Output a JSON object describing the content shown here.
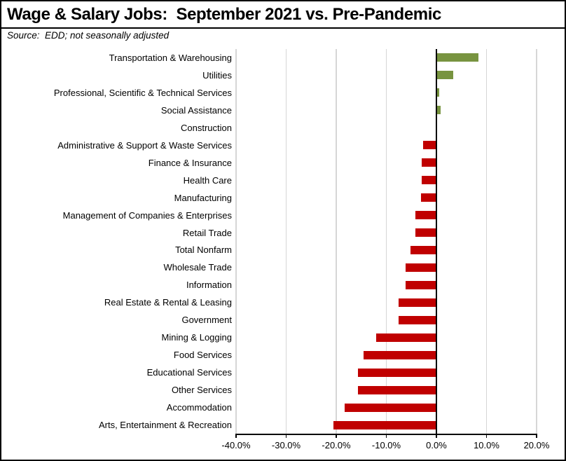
{
  "chart_data": {
    "type": "bar",
    "orientation": "horizontal",
    "title": "Wage & Salary Jobs:  September 2021 vs. Pre-Pandemic",
    "source": "Source:  EDD; not seasonally adjusted",
    "xlabel": "",
    "ylabel": "",
    "value_unit": "percent",
    "xlim": [
      -40,
      20
    ],
    "grid": true,
    "categories": [
      "Transportation & Warehousing",
      "Utilities",
      "Professional, Scientific & Technical Services",
      "Social Assistance",
      "Construction",
      "Administrative & Support & Waste Services",
      "Finance & Insurance",
      "Health Care",
      "Manufacturing",
      "Management of Companies & Enterprises",
      "Retail Trade",
      "Total Nonfarm",
      "Wholesale Trade",
      "Information",
      "Real Estate & Rental & Leasing",
      "Government",
      "Mining & Logging",
      "Food Services",
      "Educational Services",
      "Other Services",
      "Accommodation",
      "Arts, Entertainment & Recreation"
    ],
    "values": [
      8.4,
      3.3,
      0.6,
      0.8,
      0.2,
      -2.7,
      -3.0,
      -2.9,
      -3.1,
      -4.2,
      -4.2,
      -5.2,
      -6.1,
      -6.1,
      -7.5,
      -7.5,
      -12.0,
      -14.5,
      -15.6,
      -15.7,
      -18.3,
      -20.5
    ],
    "x_tick_values": [
      -40,
      -30,
      -20,
      -10,
      0,
      10,
      20
    ],
    "x_tick_labels": [
      "-40.0%",
      "-30.0%",
      "-20.0%",
      "-10.0%",
      "0.0%",
      "10.0%",
      "20.0%"
    ],
    "colors": {
      "positive": "#789440",
      "negative": "#C00000",
      "gridline": "#D6D6D6",
      "axis": "#000000"
    }
  }
}
